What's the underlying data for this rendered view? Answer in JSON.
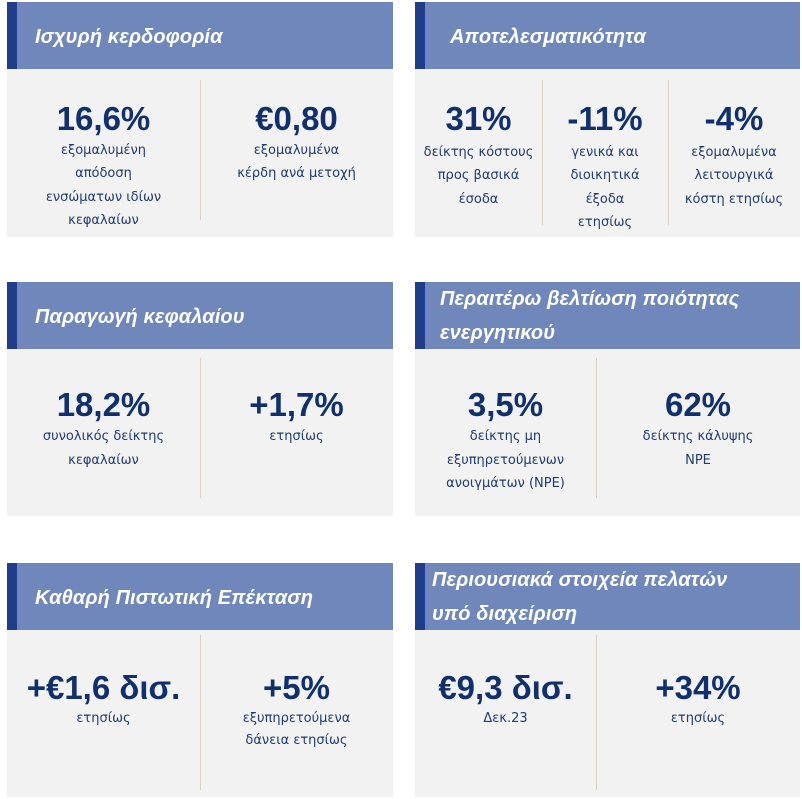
{
  "colors": {
    "header_bg": "#6f87ba",
    "accent": "#1f3d8c",
    "panel_bg": "#f2f2f2",
    "value_text": "#0f2f6f",
    "caption_text": "#1f3b70",
    "divider": "#d8d2bf",
    "title_text": "#ffffff"
  },
  "panels": [
    {
      "title_lines": [
        "Ισχυρή κερδοφορία"
      ],
      "metrics": [
        {
          "value": "16,6%",
          "caption_lines": [
            "εξομαλυμένη",
            "απόδοση",
            "ενσώματων ιδίων",
            "κεφαλαίων"
          ]
        },
        {
          "value": "€0,80",
          "caption_lines": [
            "εξομαλυμένα",
            "κέρδη ανά μετοχή"
          ]
        }
      ]
    },
    {
      "title_lines": [
        "Αποτελεσματικότητα"
      ],
      "metrics": [
        {
          "value": "31%",
          "caption_lines": [
            "δείκτης κόστους",
            "προς βασικά",
            "έσοδα"
          ]
        },
        {
          "value": "-11%",
          "caption_lines": [
            "γενικά και",
            "διοικητικά",
            "έξοδα",
            "ετησίως"
          ]
        },
        {
          "value": "-4%",
          "caption_lines": [
            "εξομαλυμένα",
            "λειτουργικά",
            "κόστη ετησίως"
          ]
        }
      ]
    },
    {
      "title_lines": [
        "Παραγωγή κεφαλαίου"
      ],
      "metrics": [
        {
          "value": "18,2%",
          "caption_lines": [
            "συνολικός δείκτης",
            "κεφαλαίων"
          ]
        },
        {
          "value": "+1,7%",
          "caption_lines": [
            "ετησίως"
          ]
        }
      ]
    },
    {
      "title_lines": [
        "Περαιτέρω βελτίωση ποιότητας",
        "ενεργητικού"
      ],
      "metrics": [
        {
          "value": "3,5%",
          "caption_lines": [
            "δείκτης μη",
            "εξυπηρετούμενων",
            "ανοιγμάτων (NPE)"
          ]
        },
        {
          "value": "62%",
          "caption_lines": [
            "δείκτης κάλυψης",
            "NPE"
          ]
        }
      ]
    },
    {
      "title_lines": [
        "Καθαρή Πιστωτική Επέκταση"
      ],
      "metrics": [
        {
          "value": "+€1,6 δισ.",
          "caption_lines": [
            "ετησίως"
          ]
        },
        {
          "value": "+5%",
          "caption_lines": [
            "εξυπηρετούμενα",
            "δάνεια ετησίως"
          ]
        }
      ]
    },
    {
      "title_lines": [
        "Περιουσιακά στοιχεία πελατών",
        "υπό διαχείριση"
      ],
      "metrics": [
        {
          "value": "€9,3 δισ.",
          "caption_lines": [
            "Δεκ.23"
          ]
        },
        {
          "value": "+34%",
          "caption_lines": [
            "ετησίως"
          ]
        }
      ]
    }
  ]
}
